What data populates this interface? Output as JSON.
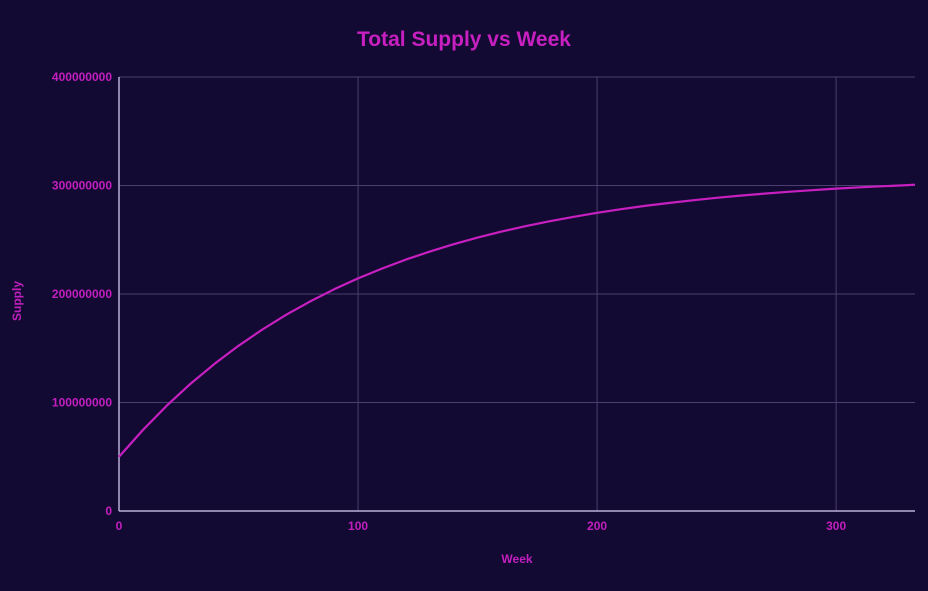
{
  "chart_data": {
    "type": "line",
    "title": "Total Supply vs Week",
    "xlabel": "Week",
    "ylabel": "Supply",
    "xlim": [
      0,
      333
    ],
    "ylim": [
      0,
      400000000
    ],
    "xticks": [
      "0",
      "100",
      "200",
      "300"
    ],
    "yticks": [
      "0",
      "100000000",
      "200000000",
      "300000000",
      "400000000"
    ],
    "grid": true,
    "colors": {
      "background": "#130a33",
      "line": "#c81fc0",
      "grid": "#4a3f6e",
      "axis": "#b9b0d6",
      "text": "#c21fbf"
    },
    "series": [
      {
        "x": [
          0,
          10,
          20,
          30,
          40,
          50,
          60,
          70,
          80,
          90,
          100,
          110,
          120,
          130,
          140,
          150,
          160,
          170,
          180,
          190,
          200,
          210,
          220,
          230,
          240,
          250,
          260,
          270,
          280,
          290,
          300,
          310,
          320,
          330,
          333
        ],
        "values": [
          50000000,
          74700000,
          97100000,
          117400000,
          135700000,
          152300000,
          167300000,
          180900000,
          193200000,
          204300000,
          214400000,
          223400000,
          231700000,
          239100000,
          245900000,
          252000000,
          257500000,
          262500000,
          267000000,
          271100000,
          274800000,
          278200000,
          281200000,
          283900000,
          286400000,
          288700000,
          290700000,
          292500000,
          294200000,
          295700000,
          297100000,
          298300000,
          299400000,
          300400000,
          300700000
        ]
      }
    ]
  }
}
